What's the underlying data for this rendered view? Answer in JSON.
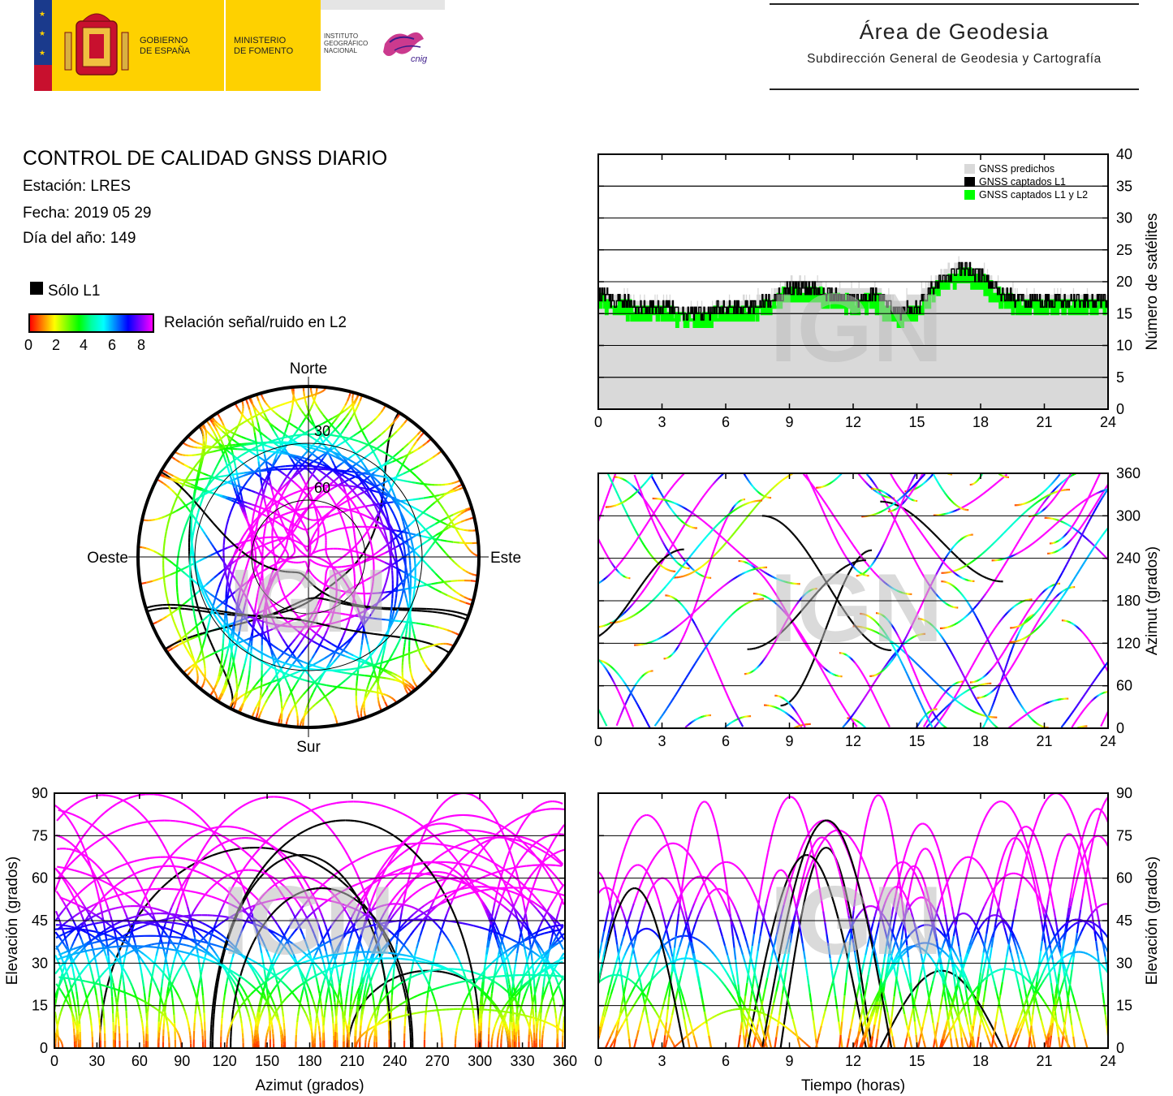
{
  "header": {
    "logo": {
      "gov_line1": "GOBIERNO",
      "gov_line2": "DE ESPAÑA",
      "min_line1": "MINISTERIO",
      "min_line2": "DE FOMENTO",
      "inst_line1": "INSTITUTO",
      "inst_line2": "GEOGRÁFICO",
      "inst_line3": "NACIONAL",
      "cnig": "cnig"
    },
    "area_title": "Área de Geodesia",
    "area_subtitle": "Subdirección General de Geodesia y Cartografía"
  },
  "info": {
    "title": "CONTROL DE CALIDAD GNSS DIARIO",
    "station": "Estación: LRES",
    "date": "Fecha: 2019 05 29",
    "doy": "Día del año: 149",
    "solo_l1": "Sólo L1",
    "snr_label": "Relación señal/ruido en L2",
    "snr_ticks": [
      "0",
      "2",
      "4",
      "6",
      "8"
    ]
  },
  "colors": {
    "predicted": "#d9d9d9",
    "l1": "#000000",
    "l1l2": "#00ff00",
    "snr_scale": [
      "#ff0000",
      "#ff8000",
      "#ffff00",
      "#80ff00",
      "#00ff00",
      "#00ffa0",
      "#00ffff",
      "#0080ff",
      "#0000ff",
      "#8000ff",
      "#ff00ff"
    ]
  },
  "watermark": "IGN",
  "chart_data": [
    {
      "id": "satellite_count",
      "type": "area",
      "ylabel": "Número de satélites",
      "xlim": [
        0,
        24
      ],
      "ylim": [
        0,
        40
      ],
      "xticks": [
        "0",
        "3",
        "6",
        "9",
        "12",
        "15",
        "18",
        "21",
        "24"
      ],
      "yticks": [
        "0",
        "5",
        "10",
        "15",
        "20",
        "25",
        "30",
        "35",
        "40"
      ],
      "grid": true,
      "legend_position": "top-right",
      "legend": [
        "GNSS predichos",
        "GNSS captados L1",
        "GNSS captados L1 y L2"
      ],
      "series": [
        {
          "name": "GNSS predichos",
          "x": [
            0,
            1,
            2,
            3,
            4,
            5,
            6,
            7,
            8,
            9,
            10,
            11,
            12,
            13,
            14,
            15,
            16,
            17,
            18,
            19,
            20,
            21,
            22,
            23,
            24
          ],
          "values": [
            18,
            18,
            17,
            17,
            16,
            16,
            17,
            17,
            18,
            20,
            20,
            19,
            19,
            19,
            17,
            18,
            21,
            23,
            22,
            19,
            18,
            18,
            18,
            18,
            18
          ]
        },
        {
          "name": "GNSS captados L1",
          "x": [
            0,
            1,
            2,
            3,
            4,
            5,
            6,
            7,
            8,
            9,
            10,
            11,
            12,
            13,
            14,
            15,
            16,
            17,
            18,
            19,
            20,
            21,
            22,
            23,
            24
          ],
          "values": [
            18,
            17,
            16,
            16,
            15,
            15,
            16,
            16,
            17,
            19,
            19,
            18,
            17,
            18,
            15,
            16,
            20,
            22,
            21,
            18,
            17,
            17,
            17,
            17,
            17
          ]
        },
        {
          "name": "GNSS captados L1 y L2",
          "x": [
            0,
            1,
            2,
            3,
            4,
            5,
            6,
            7,
            8,
            9,
            10,
            11,
            12,
            13,
            14,
            15,
            16,
            17,
            18,
            19,
            20,
            21,
            22,
            23,
            24
          ],
          "values": [
            17,
            16,
            15,
            15,
            14,
            14,
            15,
            15,
            16,
            18,
            18,
            17,
            16,
            17,
            14,
            15,
            19,
            21,
            20,
            17,
            16,
            16,
            16,
            16,
            16
          ]
        }
      ]
    },
    {
      "id": "azimuth_time",
      "type": "scatter",
      "ylabel": "Azimut (grados)",
      "xlim": [
        0,
        24
      ],
      "ylim": [
        0,
        360
      ],
      "xticks": [
        "0",
        "3",
        "6",
        "9",
        "12",
        "15",
        "18",
        "21",
        "24"
      ],
      "yticks": [
        "0",
        "60",
        "120",
        "180",
        "240",
        "300",
        "360"
      ],
      "grid": true
    },
    {
      "id": "skyplot",
      "type": "scatter",
      "directions": {
        "north": "Norte",
        "south": "Sur",
        "east": "Este",
        "west": "Oeste"
      },
      "elevation_rings": [
        "30",
        "60"
      ]
    },
    {
      "id": "elevation_azimuth",
      "type": "scatter",
      "xlabel": "Azimut (grados)",
      "ylabel": "Elevación (grados)",
      "xlim": [
        0,
        360
      ],
      "ylim": [
        0,
        90
      ],
      "xticks": [
        "0",
        "30",
        "60",
        "90",
        "120",
        "150",
        "180",
        "210",
        "240",
        "270",
        "300",
        "330",
        "360"
      ],
      "yticks": [
        "0",
        "15",
        "30",
        "45",
        "60",
        "75",
        "90"
      ],
      "grid": true
    },
    {
      "id": "elevation_time",
      "type": "scatter",
      "xlabel": "Tiempo (horas)",
      "ylabel": "Elevación (grados)",
      "xlim": [
        0,
        24
      ],
      "ylim": [
        0,
        90
      ],
      "xticks": [
        "0",
        "3",
        "6",
        "9",
        "12",
        "15",
        "18",
        "21",
        "24"
      ],
      "yticks": [
        "0",
        "15",
        "30",
        "45",
        "60",
        "75",
        "90"
      ],
      "grid": true
    }
  ]
}
